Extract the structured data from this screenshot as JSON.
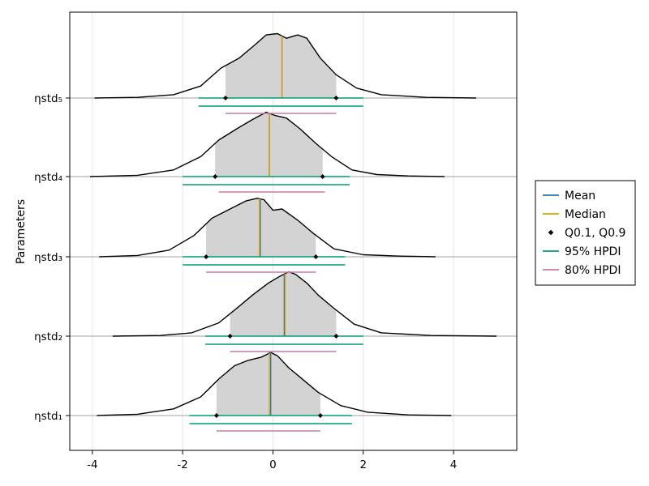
{
  "chart_data": {
    "type": "ridgeline",
    "ylabel": "Parameters",
    "xlim": [
      -4.5,
      5.4
    ],
    "xticks": [
      -4,
      -2,
      0,
      2,
      4
    ],
    "xtick_labels": [
      "-4",
      "-2",
      "0",
      "2",
      "4"
    ],
    "grid": true,
    "legend_position": "right",
    "legend": [
      {
        "label": "Mean",
        "kind": "line",
        "color": "#1f77b4"
      },
      {
        "label": "Median",
        "kind": "line",
        "color": "#e69f00"
      },
      {
        "label": "Q0.1, Q0.9",
        "kind": "point",
        "color": "#000000"
      },
      {
        "label": "95% HPDI",
        "kind": "line",
        "color": "#009e73"
      },
      {
        "label": "80% HPDI",
        "kind": "line",
        "color": "#cc79a7"
      }
    ],
    "colors": {
      "fill": "#d3d3d3",
      "outline": "#000000",
      "baseline": "#a0a0a0",
      "grid": "#e5e5e5",
      "frame": "#000000"
    },
    "parameters": [
      {
        "name": "ηstd₁",
        "mean": -0.05,
        "median": -0.08,
        "q10": -1.25,
        "q90": 1.05,
        "hpdi95": [
          -1.85,
          1.75
        ],
        "hpdi80": [
          -1.25,
          1.05
        ],
        "range": [
          -3.9,
          3.95
        ],
        "density_x": [
          -3.9,
          -3.0,
          -2.2,
          -1.6,
          -1.2,
          -0.85,
          -0.55,
          -0.25,
          -0.05,
          0.1,
          0.35,
          0.65,
          1.0,
          1.5,
          2.1,
          3.0,
          3.95
        ],
        "density_y": [
          0.0,
          0.02,
          0.1,
          0.28,
          0.55,
          0.75,
          0.83,
          0.88,
          0.95,
          0.9,
          0.72,
          0.55,
          0.35,
          0.15,
          0.05,
          0.01,
          0.0
        ]
      },
      {
        "name": "ηstd₂",
        "mean": 0.25,
        "median": 0.27,
        "q10": -0.95,
        "q90": 1.4,
        "hpdi95": [
          -1.5,
          2.0
        ],
        "hpdi80": [
          -0.95,
          1.4
        ],
        "range": [
          -3.55,
          4.95
        ],
        "density_x": [
          -3.55,
          -2.5,
          -1.8,
          -1.2,
          -0.8,
          -0.45,
          -0.1,
          0.15,
          0.35,
          0.5,
          0.75,
          1.0,
          1.35,
          1.8,
          2.4,
          3.5,
          4.95
        ],
        "density_y": [
          0.0,
          0.01,
          0.05,
          0.2,
          0.42,
          0.62,
          0.8,
          0.9,
          0.97,
          0.93,
          0.8,
          0.62,
          0.42,
          0.18,
          0.05,
          0.01,
          0.0
        ]
      },
      {
        "name": "ηstd₃",
        "mean": -0.28,
        "median": -0.3,
        "q10": -1.48,
        "q90": 0.95,
        "hpdi95": [
          -2.0,
          1.6
        ],
        "hpdi80": [
          -1.48,
          0.95
        ],
        "range": [
          -3.85,
          3.6
        ],
        "density_x": [
          -3.85,
          -3.0,
          -2.3,
          -1.75,
          -1.35,
          -0.95,
          -0.6,
          -0.35,
          -0.2,
          0.0,
          0.2,
          0.55,
          0.9,
          1.35,
          2.0,
          2.8,
          3.6
        ],
        "density_y": [
          0.0,
          0.02,
          0.1,
          0.32,
          0.58,
          0.72,
          0.84,
          0.88,
          0.86,
          0.7,
          0.72,
          0.55,
          0.35,
          0.12,
          0.03,
          0.01,
          0.0
        ]
      },
      {
        "name": "ηstd₄",
        "mean": -0.08,
        "median": -0.08,
        "q10": -1.28,
        "q90": 1.1,
        "hpdi95": [
          -2.0,
          1.7
        ],
        "hpdi80": [
          -1.2,
          1.15
        ],
        "range": [
          -4.05,
          3.8
        ],
        "density_x": [
          -4.05,
          -3.0,
          -2.2,
          -1.6,
          -1.2,
          -0.8,
          -0.45,
          -0.15,
          0.05,
          0.3,
          0.6,
          0.95,
          1.3,
          1.75,
          2.3,
          3.0,
          3.8
        ],
        "density_y": [
          0.0,
          0.02,
          0.1,
          0.3,
          0.55,
          0.72,
          0.86,
          0.97,
          0.92,
          0.88,
          0.72,
          0.5,
          0.3,
          0.1,
          0.03,
          0.01,
          0.0
        ]
      },
      {
        "name": "ηstd₅",
        "mean": 0.2,
        "median": 0.2,
        "q10": -1.05,
        "q90": 1.4,
        "hpdi95": [
          -1.65,
          2.0
        ],
        "hpdi80": [
          -1.05,
          1.4
        ],
        "range": [
          -3.95,
          4.5
        ],
        "density_x": [
          -3.95,
          -3.0,
          -2.2,
          -1.6,
          -1.15,
          -0.75,
          -0.4,
          -0.15,
          0.1,
          0.3,
          0.55,
          0.75,
          1.05,
          1.4,
          1.85,
          2.4,
          3.4,
          4.5
        ],
        "density_y": [
          0.0,
          0.01,
          0.05,
          0.18,
          0.45,
          0.6,
          0.8,
          0.95,
          0.97,
          0.9,
          0.95,
          0.9,
          0.6,
          0.35,
          0.15,
          0.05,
          0.01,
          0.0
        ]
      }
    ]
  }
}
